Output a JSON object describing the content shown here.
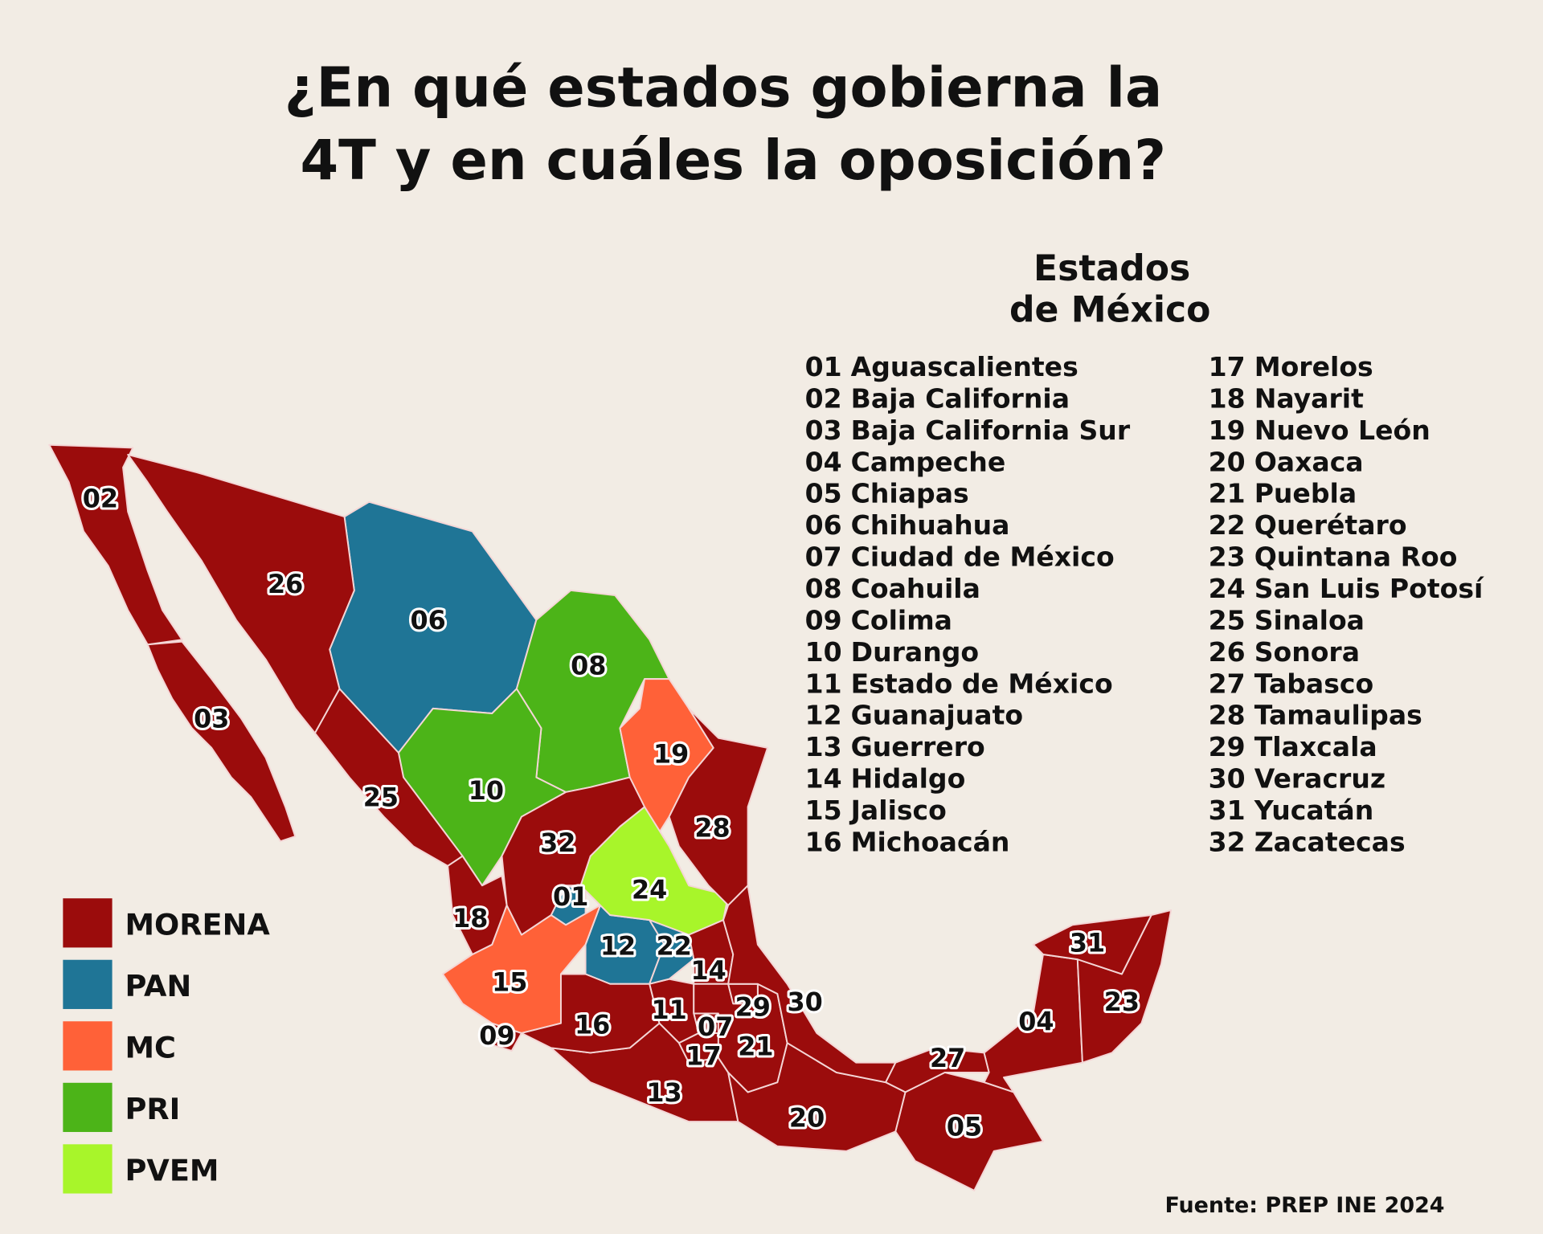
{
  "title_lines": [
    "¿En qué estados gobierna la",
    "4T y en cuáles la oposición?"
  ],
  "list_heading_lines": [
    "Estados",
    "de México"
  ],
  "legend": [
    {
      "party": "MORENA",
      "color": "#9b0c0c"
    },
    {
      "party": "PAN",
      "color": "#1f7596"
    },
    {
      "party": "MC",
      "color": "#ff6138"
    },
    {
      "party": "PRI",
      "color": "#4cb418"
    },
    {
      "party": "PVEM",
      "color": "#a8f52a"
    }
  ],
  "states": [
    {
      "code": "01",
      "name": "Aguascalientes",
      "party": "PAN"
    },
    {
      "code": "02",
      "name": "Baja California",
      "party": "MORENA"
    },
    {
      "code": "03",
      "name": "Baja California Sur",
      "party": "MORENA"
    },
    {
      "code": "04",
      "name": "Campeche",
      "party": "MORENA"
    },
    {
      "code": "05",
      "name": "Chiapas",
      "party": "MORENA"
    },
    {
      "code": "06",
      "name": "Chihuahua",
      "party": "PAN"
    },
    {
      "code": "07",
      "name": "Ciudad de México",
      "party": "MORENA"
    },
    {
      "code": "08",
      "name": "Coahuila",
      "party": "PRI"
    },
    {
      "code": "09",
      "name": "Colima",
      "party": "MORENA"
    },
    {
      "code": "10",
      "name": "Durango",
      "party": "PRI"
    },
    {
      "code": "11",
      "name": "Estado de México",
      "party": "MORENA"
    },
    {
      "code": "12",
      "name": "Guanajuato",
      "party": "PAN"
    },
    {
      "code": "13",
      "name": "Guerrero",
      "party": "MORENA"
    },
    {
      "code": "14",
      "name": "Hidalgo",
      "party": "MORENA"
    },
    {
      "code": "15",
      "name": "Jalisco",
      "party": "MC"
    },
    {
      "code": "16",
      "name": "Michoacán",
      "party": "MORENA"
    },
    {
      "code": "17",
      "name": "Morelos",
      "party": "MORENA"
    },
    {
      "code": "18",
      "name": "Nayarit",
      "party": "MORENA"
    },
    {
      "code": "19",
      "name": "Nuevo León",
      "party": "MC"
    },
    {
      "code": "20",
      "name": "Oaxaca",
      "party": "MORENA"
    },
    {
      "code": "21",
      "name": "Puebla",
      "party": "MORENA"
    },
    {
      "code": "22",
      "name": "Querétaro",
      "party": "PAN"
    },
    {
      "code": "23",
      "name": "Quintana Roo",
      "party": "MORENA"
    },
    {
      "code": "24",
      "name": "San Luis Potosí",
      "party": "PVEM"
    },
    {
      "code": "25",
      "name": "Sinaloa",
      "party": "MORENA"
    },
    {
      "code": "26",
      "name": "Sonora",
      "party": "MORENA"
    },
    {
      "code": "27",
      "name": "Tabasco",
      "party": "MORENA"
    },
    {
      "code": "28",
      "name": "Tamaulipas",
      "party": "MORENA"
    },
    {
      "code": "29",
      "name": "Tlaxcala",
      "party": "MORENA"
    },
    {
      "code": "30",
      "name": "Veracruz",
      "party": "MORENA"
    },
    {
      "code": "31",
      "name": "Yucatán",
      "party": "MORENA"
    },
    {
      "code": "32",
      "name": "Zacatecas",
      "party": "MORENA"
    }
  ],
  "source": "Fuente: PREP INE 2024"
}
